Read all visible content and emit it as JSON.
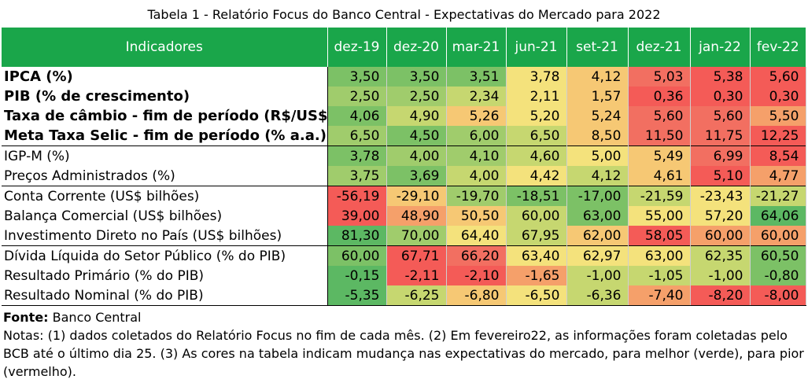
{
  "title": "Tabela 1 - Relatório Focus do Banco Central - Expectativas do Mercado para 2022",
  "header": {
    "indicator_label": "Indicadores",
    "columns": [
      "dez-19",
      "dez-20",
      "mar-21",
      "jun-21",
      "set-21",
      "dez-21",
      "jan-22",
      "fev-22"
    ]
  },
  "colors": {
    "header_bg": "#1aa64a",
    "scale": [
      "#5cb863",
      "#7cc166",
      "#a0cc6c",
      "#c6d770",
      "#f4e27c",
      "#f6c874",
      "#f5a06a",
      "#f26f61",
      "#f45b57"
    ]
  },
  "rows": [
    {
      "label": "IPCA (%)",
      "bold": true,
      "values": [
        "3,50",
        "3,50",
        "3,51",
        "3,78",
        "4,12",
        "5,03",
        "5,38",
        "5,60"
      ],
      "shades": [
        1,
        1,
        1,
        4,
        5,
        7,
        8,
        8
      ]
    },
    {
      "label": "PIB (% de crescimento)",
      "bold": true,
      "values": [
        "2,50",
        "2,50",
        "2,34",
        "2,11",
        "1,57",
        "0,36",
        "0,30",
        "0,30"
      ],
      "shades": [
        2,
        2,
        3,
        4,
        5,
        8,
        8,
        8
      ]
    },
    {
      "label": "Taxa de câmbio - fim de período (R$/US$",
      "bold": true,
      "values": [
        "4,06",
        "4,90",
        "5,26",
        "5,20",
        "5,24",
        "5,60",
        "5,60",
        "5,50"
      ],
      "shades": [
        1,
        3,
        5,
        4,
        5,
        7,
        7,
        6
      ]
    },
    {
      "label": "Meta Taxa Selic - fim de período (% a.a.)",
      "bold": true,
      "values": [
        "6,50",
        "4,50",
        "6,00",
        "6,50",
        "8,50",
        "11,50",
        "11,75",
        "12,25"
      ],
      "shades": [
        2,
        1,
        2,
        3,
        5,
        7,
        7,
        8
      ]
    },
    {
      "label": "IGP-M (%)",
      "bold": false,
      "sep": true,
      "values": [
        "3,78",
        "4,00",
        "4,10",
        "4,60",
        "5,00",
        "5,49",
        "6,99",
        "8,54"
      ],
      "shades": [
        1,
        2,
        2,
        3,
        4,
        5,
        7,
        8
      ]
    },
    {
      "label": "Preços Administrados (%)",
      "bold": false,
      "values": [
        "3,75",
        "3,69",
        "4,00",
        "4,42",
        "4,12",
        "4,61",
        "5,10",
        "4,77"
      ],
      "shades": [
        2,
        1,
        3,
        4,
        3,
        5,
        8,
        6
      ]
    },
    {
      "label": "Conta Corrente (US$ bilhões)",
      "bold": false,
      "sep": true,
      "values": [
        "-56,19",
        "-29,10",
        "-19,70",
        "-18,51",
        "-17,00",
        "-21,59",
        "-23,43",
        "-21,27"
      ],
      "shades": [
        8,
        5,
        2,
        1,
        1,
        3,
        4,
        3
      ]
    },
    {
      "label": "Balança Comercial (US$ bilhões)",
      "bold": false,
      "values": [
        "39,00",
        "48,90",
        "50,50",
        "60,00",
        "63,00",
        "55,00",
        "57,20",
        "64,06"
      ],
      "shades": [
        8,
        6,
        5,
        3,
        1,
        4,
        4,
        0
      ]
    },
    {
      "label": "Investimento Direto no País (US$ bilhões)",
      "bold": false,
      "values": [
        "81,30",
        "70,00",
        "64,40",
        "67,95",
        "62,00",
        "58,05",
        "60,00",
        "60,00"
      ],
      "shades": [
        0,
        2,
        4,
        3,
        5,
        8,
        6,
        6
      ]
    },
    {
      "label": "Dívida Líquida do Setor Público (% do PIB)",
      "bold": false,
      "sep": true,
      "values": [
        "60,00",
        "67,71",
        "66,20",
        "63,40",
        "62,97",
        "63,00",
        "62,35",
        "60,50"
      ],
      "shades": [
        1,
        8,
        7,
        4,
        4,
        4,
        3,
        1
      ]
    },
    {
      "label": "Resultado Primário (% do PIB)",
      "bold": false,
      "values": [
        "-0,15",
        "-2,11",
        "-2,10",
        "-1,65",
        "-1,00",
        "-1,05",
        "-1,00",
        "-0,80"
      ],
      "shades": [
        0,
        8,
        8,
        6,
        3,
        3,
        3,
        1
      ]
    },
    {
      "label": "Resultado Nominal (% do PIB)",
      "bold": false,
      "last": true,
      "values": [
        "-5,35",
        "-6,25",
        "-6,80",
        "-6,50",
        "-6,36",
        "-7,40",
        "-8,20",
        "-8,00"
      ],
      "shades": [
        0,
        3,
        5,
        4,
        3,
        6,
        8,
        8
      ]
    }
  ],
  "footer": {
    "source_label": "Fonte:",
    "source_value": " Banco Central",
    "notes": "Notas: (1) dados coletados do Relatório Focus no fim de cada mês. (2) Em fevereiro22, as informações foram coletadas pelo BCB até o último dia 25. (3) As cores na tabela indicam mudança nas expectativas do mercado, para melhor (verde), para pior (vermelho)."
  }
}
